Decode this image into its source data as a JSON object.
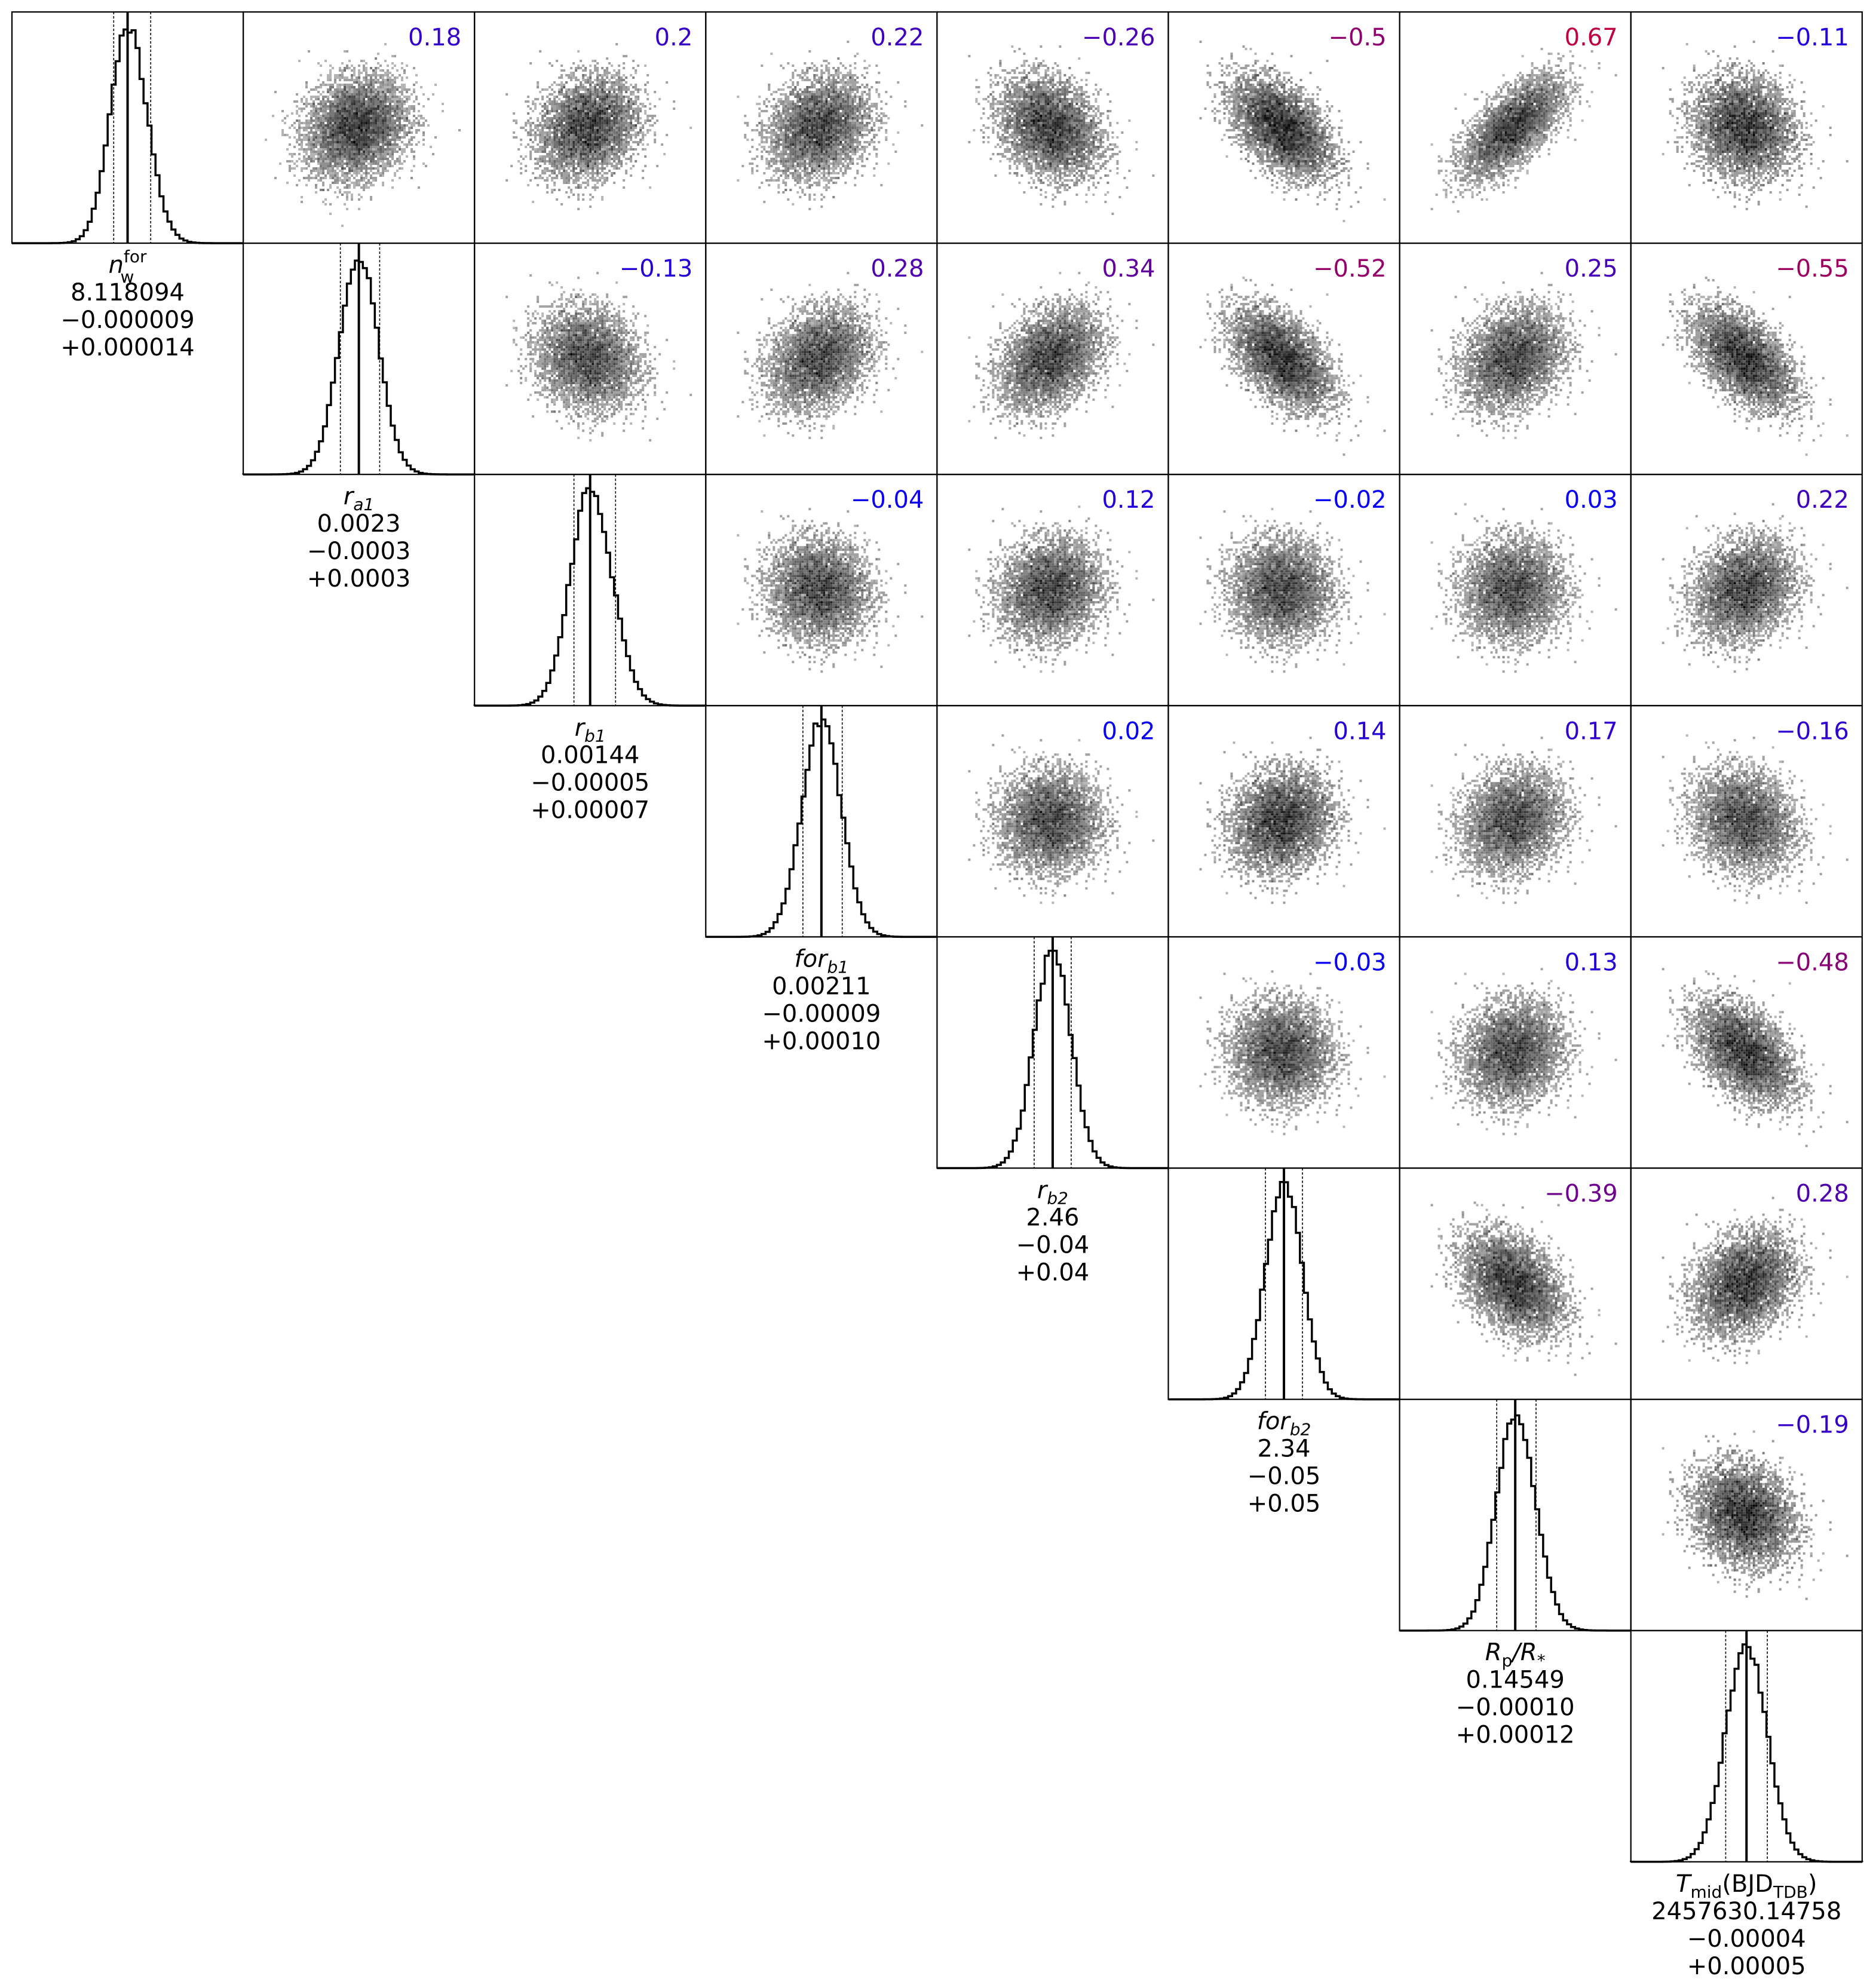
{
  "chart_data": {
    "type": "corner",
    "parameters": [
      {
        "symbol": "n",
        "sup": "for",
        "sub": "w",
        "italic_main": true,
        "value": "8.118094",
        "minus": "−0.000009",
        "plus": "+0.000014",
        "hist": {
          "median": 0.5,
          "lo": 0.44,
          "hi": 0.6,
          "skew": 0.05
        }
      },
      {
        "symbol": "r",
        "sub": "a1",
        "italic_main": true,
        "italic_sub": true,
        "value": "0.0023",
        "minus": "−0.0003",
        "plus": "+0.0003",
        "hist": {
          "median": 0.5,
          "lo": 0.42,
          "hi": 0.59,
          "skew": 0.0
        }
      },
      {
        "symbol": "r",
        "sub": "b1",
        "italic_main": true,
        "italic_sub": true,
        "value": "0.00144",
        "minus": "−0.00005",
        "plus": "+0.00007",
        "hist": {
          "median": 0.5,
          "lo": 0.43,
          "hi": 0.61,
          "skew": 0.05
        }
      },
      {
        "symbol": "for",
        "sub": "b1",
        "italic_main": true,
        "italic_sub": true,
        "value": "0.00211",
        "minus": "−0.00009",
        "plus": "+0.00010",
        "hist": {
          "median": 0.5,
          "lo": 0.42,
          "hi": 0.59,
          "skew": 0.0
        }
      },
      {
        "symbol": "r",
        "sub": "b2",
        "italic_main": true,
        "italic_sub": true,
        "value": "2.46",
        "minus": "−0.04",
        "plus": "+0.04",
        "hist": {
          "median": 0.5,
          "lo": 0.42,
          "hi": 0.58,
          "skew": 0.0
        }
      },
      {
        "symbol": "for",
        "sub": "b2",
        "italic_main": true,
        "italic_sub": true,
        "value": "2.34",
        "minus": "−0.05",
        "plus": "+0.05",
        "hist": {
          "median": 0.5,
          "lo": 0.42,
          "hi": 0.58,
          "skew": 0.0
        }
      },
      {
        "symbol": "R",
        "sub": "p",
        "tail": "/R",
        "tail_sub": "*",
        "italic_main": true,
        "value": "0.14549",
        "minus": "−0.00010",
        "plus": "+0.00012",
        "hist": {
          "median": 0.5,
          "lo": 0.42,
          "hi": 0.59,
          "skew": 0.03
        }
      },
      {
        "symbol": "T",
        "sub": "mid",
        "tail": "(BJD",
        "tail_sub": "TDB",
        "tail_end": ")",
        "italic_main": true,
        "value": "2457630.14758",
        "minus": "−0.00004",
        "plus": "+0.00005",
        "hist": {
          "median": 0.5,
          "lo": 0.41,
          "hi": 0.59,
          "skew": 0.0
        }
      }
    ],
    "correlations": [
      {
        "row": 0,
        "col": 1,
        "label": "0.18",
        "r": 0.18
      },
      {
        "row": 0,
        "col": 2,
        "label": "0.2",
        "r": 0.2
      },
      {
        "row": 0,
        "col": 3,
        "label": "0.22",
        "r": 0.22
      },
      {
        "row": 0,
        "col": 4,
        "label": "−0.26",
        "r": -0.26
      },
      {
        "row": 0,
        "col": 5,
        "label": "−0.5",
        "r": -0.5
      },
      {
        "row": 0,
        "col": 6,
        "label": "0.67",
        "r": 0.67
      },
      {
        "row": 0,
        "col": 7,
        "label": "−0.11",
        "r": -0.11
      },
      {
        "row": 1,
        "col": 2,
        "label": "−0.13",
        "r": -0.13
      },
      {
        "row": 1,
        "col": 3,
        "label": "0.28",
        "r": 0.28
      },
      {
        "row": 1,
        "col": 4,
        "label": "0.34",
        "r": 0.34
      },
      {
        "row": 1,
        "col": 5,
        "label": "−0.52",
        "r": -0.52
      },
      {
        "row": 1,
        "col": 6,
        "label": "0.25",
        "r": 0.25
      },
      {
        "row": 1,
        "col": 7,
        "label": "−0.55",
        "r": -0.55
      },
      {
        "row": 2,
        "col": 3,
        "label": "−0.04",
        "r": -0.04
      },
      {
        "row": 2,
        "col": 4,
        "label": "0.12",
        "r": 0.12
      },
      {
        "row": 2,
        "col": 5,
        "label": "−0.02",
        "r": -0.02
      },
      {
        "row": 2,
        "col": 6,
        "label": "0.03",
        "r": 0.03
      },
      {
        "row": 2,
        "col": 7,
        "label": "0.22",
        "r": 0.22
      },
      {
        "row": 3,
        "col": 4,
        "label": "0.02",
        "r": 0.02
      },
      {
        "row": 3,
        "col": 5,
        "label": "0.14",
        "r": 0.14
      },
      {
        "row": 3,
        "col": 6,
        "label": "0.17",
        "r": 0.17
      },
      {
        "row": 3,
        "col": 7,
        "label": "−0.16",
        "r": -0.16
      },
      {
        "row": 4,
        "col": 5,
        "label": "−0.03",
        "r": -0.03
      },
      {
        "row": 4,
        "col": 6,
        "label": "0.13",
        "r": 0.13
      },
      {
        "row": 4,
        "col": 7,
        "label": "−0.48",
        "r": -0.48
      },
      {
        "row": 5,
        "col": 6,
        "label": "−0.39",
        "r": -0.39
      },
      {
        "row": 5,
        "col": 7,
        "label": "0.28",
        "r": 0.28
      },
      {
        "row": 6,
        "col": 7,
        "label": "−0.19",
        "r": -0.19
      }
    ],
    "colors": {
      "low_corr": "#0000ff",
      "high_corr": "#c00040",
      "density": "#000000",
      "frame": "#000000"
    },
    "grid": false
  }
}
